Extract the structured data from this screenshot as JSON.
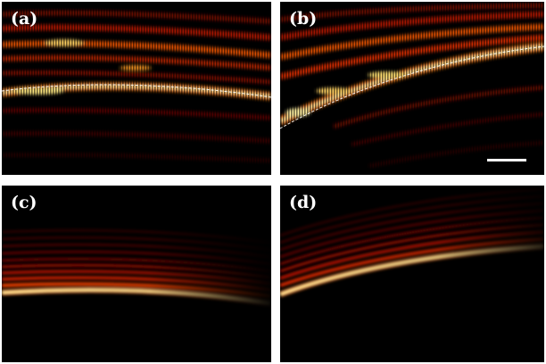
{
  "panels": [
    {
      "label": "(a)"
    },
    {
      "label": "(b)"
    },
    {
      "label": "(c)"
    },
    {
      "label": "(d)"
    }
  ],
  "colors": {
    "background": "#000000",
    "hot_low": "#5a0000",
    "hot_mid": "#d01000",
    "hot_high": "#ff8a00",
    "hot_peak": "#fff4a0",
    "annotation": "#ffffff"
  }
}
